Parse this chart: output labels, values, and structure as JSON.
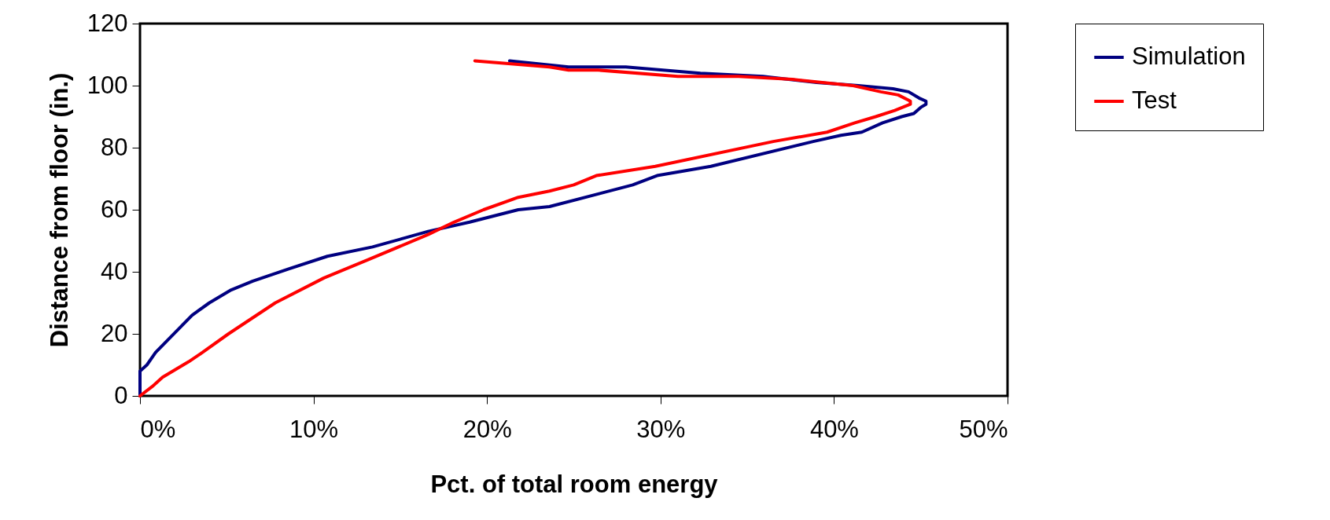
{
  "chart_data": {
    "type": "line",
    "xlabel": "Pct. of total room energy",
    "ylabel": "Distance from floor (in.)",
    "xlim": [
      0,
      50
    ],
    "xticks": [
      {
        "value": 0,
        "label": "0%"
      },
      {
        "value": 10,
        "label": "10%"
      },
      {
        "value": 20,
        "label": "20%"
      },
      {
        "value": 30,
        "label": "30%"
      },
      {
        "value": 40,
        "label": "40%"
      },
      {
        "value": 50,
        "label": "50%"
      }
    ],
    "ylim": [
      0,
      120
    ],
    "yticks": [
      0,
      20,
      40,
      60,
      80,
      100,
      120
    ],
    "grid": false,
    "legend": "right",
    "marker": "none",
    "line_style": "solid",
    "series": [
      {
        "name": "Simulation",
        "color": "#000080",
        "x": [
          0,
          0,
          0.4,
          0.9,
          3,
          4,
          5.2,
          6.5,
          8.6,
          10.8,
          13.4,
          16.6,
          19,
          21.8,
          23.6,
          28.4,
          29.8,
          32.9,
          38.8,
          40.4,
          41.6,
          42.8,
          43.9,
          44.6,
          45,
          45.3,
          45.3,
          44.9,
          44.3,
          43.4,
          41.4,
          39,
          35.9,
          32.3,
          28,
          24.7,
          21.3
        ],
        "values": [
          0,
          8,
          10,
          14,
          26,
          30,
          34,
          37,
          41,
          45,
          48,
          53,
          56,
          60,
          61,
          68,
          71,
          74,
          82,
          84,
          85,
          88,
          90,
          91,
          93,
          94,
          95,
          96,
          98,
          99,
          100,
          101,
          103,
          104,
          106,
          106,
          108
        ]
      },
      {
        "name": "Test",
        "color": "#ff0000",
        "x": [
          0,
          0.7,
          1.3,
          2.8,
          3.6,
          5.1,
          7.8,
          10.6,
          13.2,
          16.6,
          18.1,
          19.8,
          21.8,
          23.6,
          25,
          26.3,
          29.7,
          36.5,
          39.6,
          41.2,
          42.4,
          43.5,
          44.4,
          44.4,
          43.7,
          42.7,
          41.1,
          37.6,
          34.5,
          31,
          26.4,
          24.7,
          23.6,
          19.3
        ],
        "values": [
          0,
          3,
          6,
          11,
          14,
          20,
          30,
          38,
          44,
          52,
          56,
          60,
          64,
          66,
          68,
          71,
          74,
          82,
          85,
          88,
          90,
          92,
          94,
          95,
          97,
          98,
          100,
          102,
          103,
          103,
          105,
          105,
          106,
          108
        ]
      }
    ]
  }
}
